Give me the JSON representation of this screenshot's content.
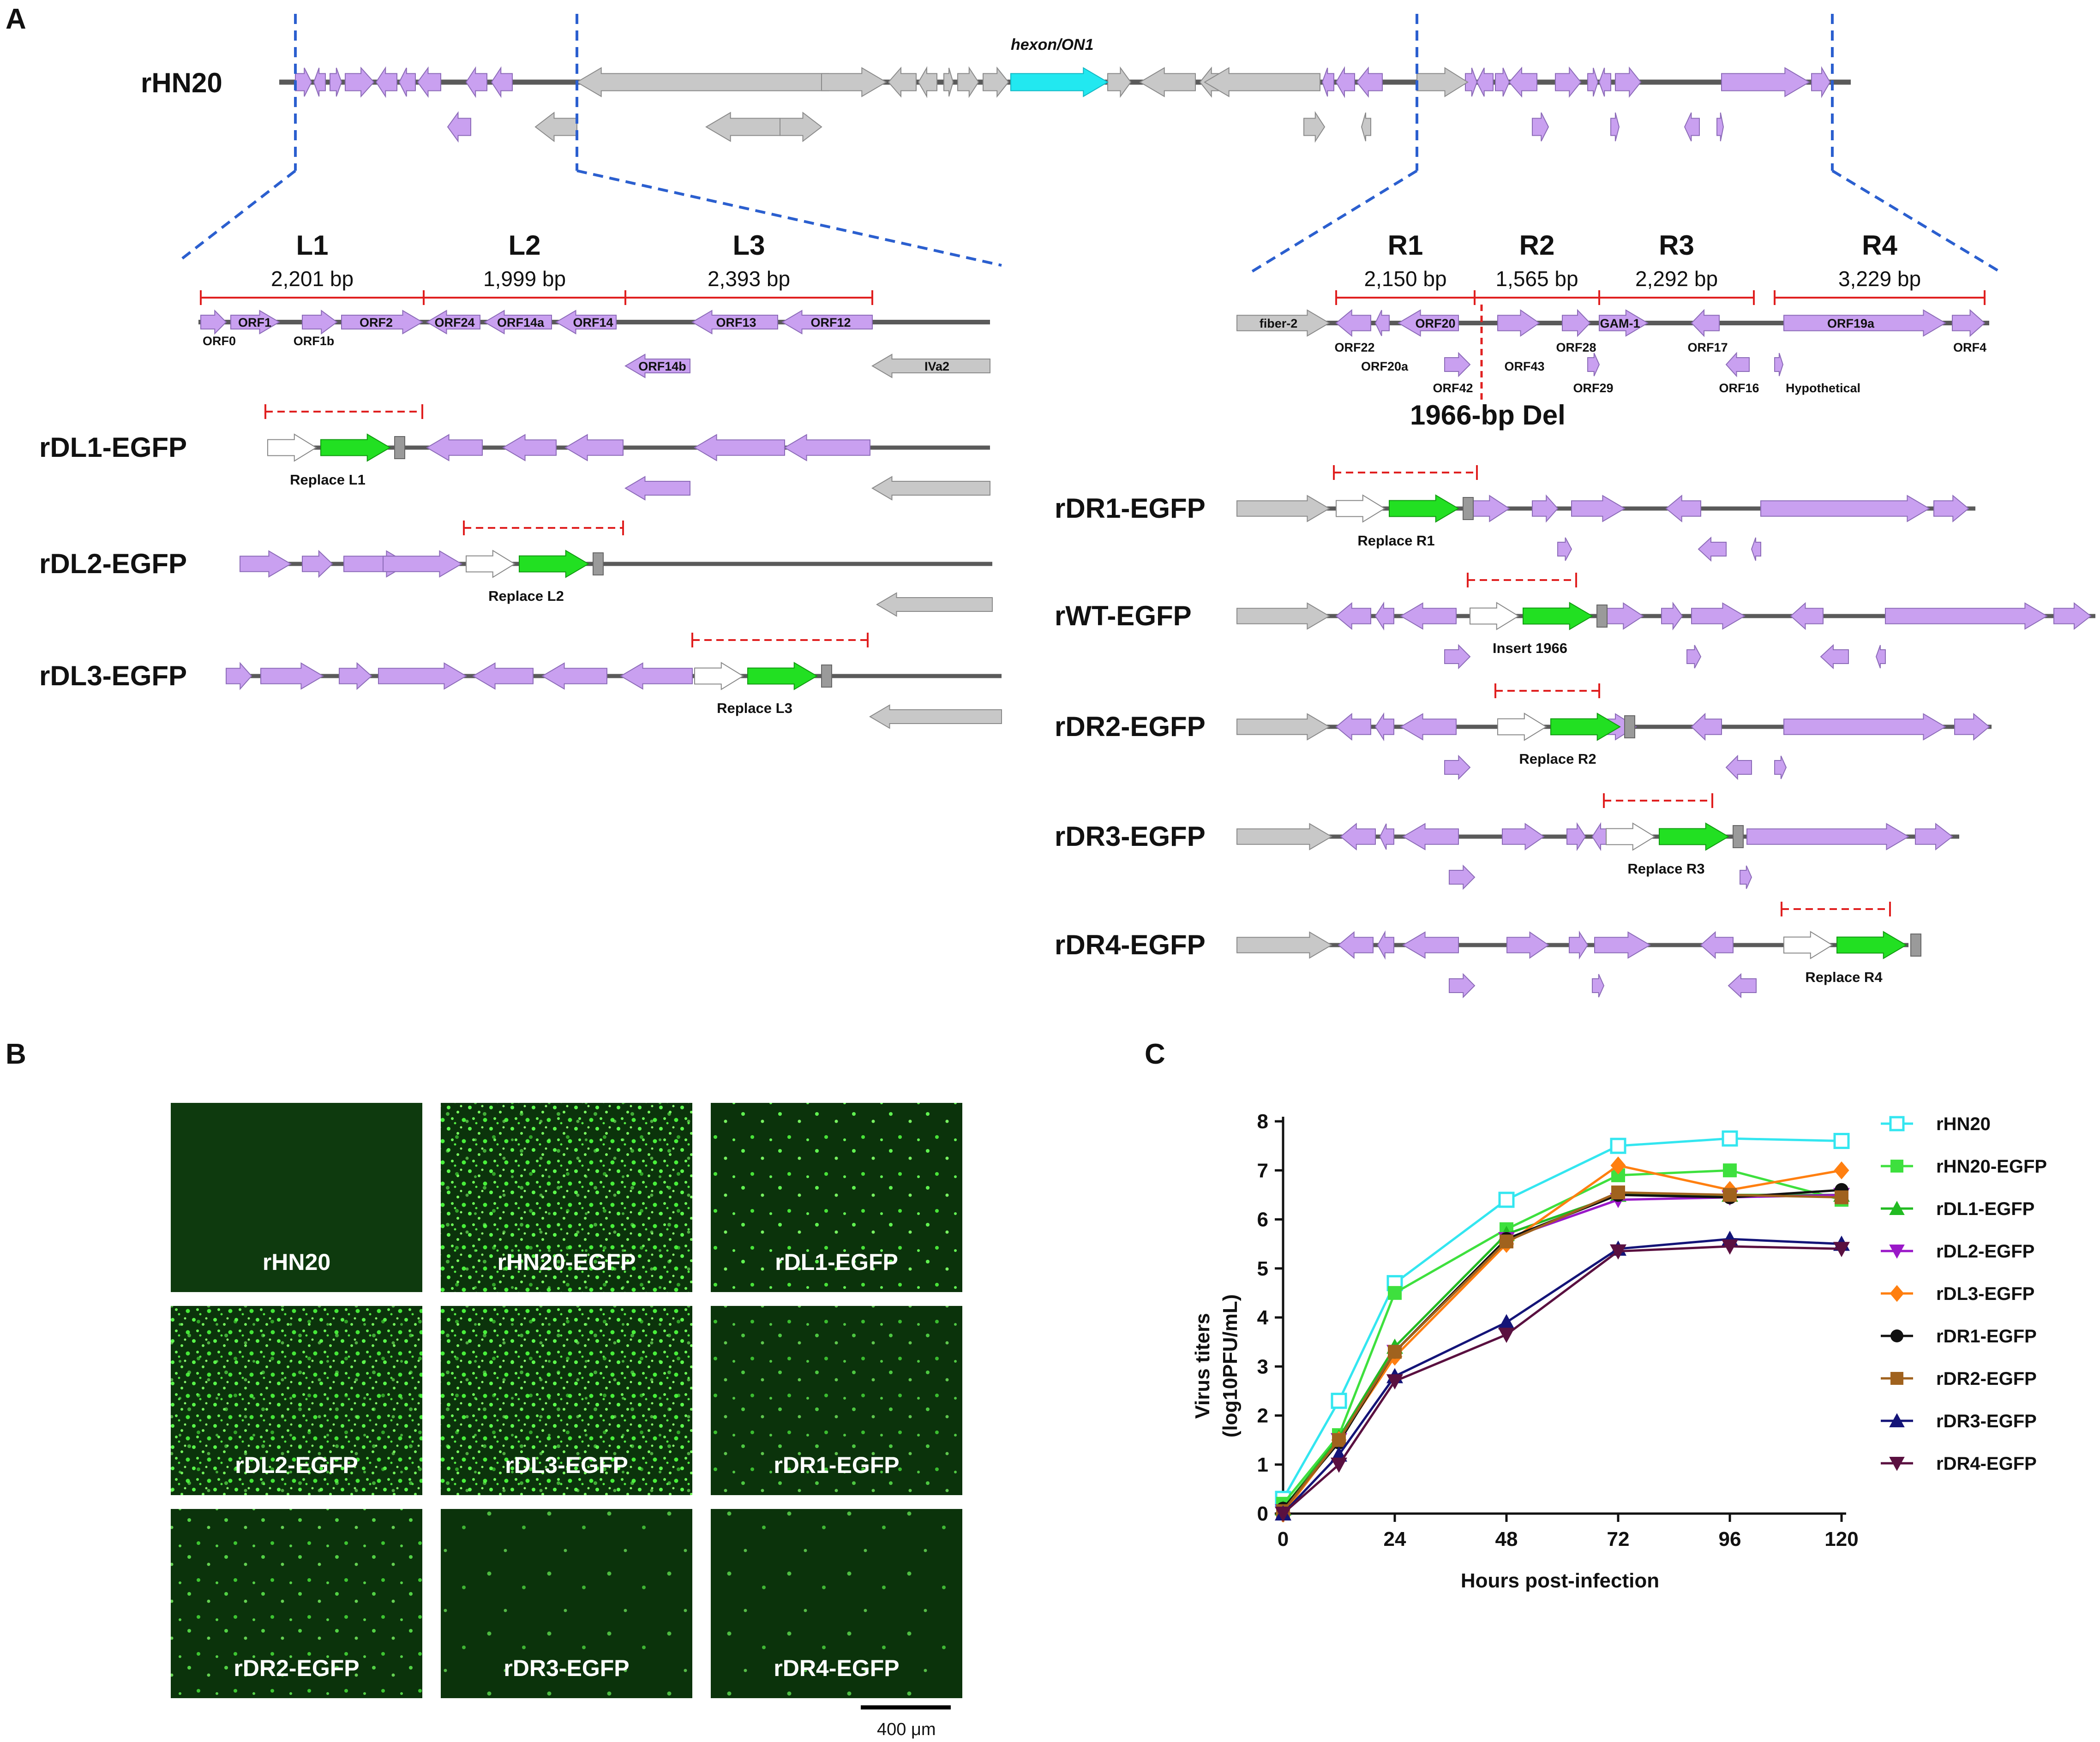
{
  "panels": {
    "a": "A",
    "b": "B",
    "c": "C"
  },
  "colors": {
    "orf": "#c9a0f0",
    "orf_stroke": "#8c6bb8",
    "gray": "#c8c8c8",
    "gray_stroke": "#8a8a8a",
    "egfp": "#22e022",
    "hexon": "#22e8f0",
    "backbone": "#5a5a5a",
    "red": "#e02020",
    "blue_dash": "#2b5fcf"
  },
  "genome": {
    "name": "rHN20",
    "hexon_label": "hexon/ON1"
  },
  "left_regions": [
    {
      "name": "L1",
      "bp": "2,201 bp"
    },
    {
      "name": "L2",
      "bp": "1,999 bp"
    },
    {
      "name": "L3",
      "bp": "2,393 bp"
    }
  ],
  "right_regions": [
    {
      "name": "R1",
      "bp": "2,150 bp"
    },
    {
      "name": "R2",
      "bp": "1,565 bp"
    },
    {
      "name": "R3",
      "bp": "2,292 bp"
    },
    {
      "name": "R4",
      "bp": "3,229 bp"
    }
  ],
  "left_genes": {
    "in_arrow": [
      "ORF1",
      "ORF2",
      "ORF24",
      "ORF14a",
      "ORF14",
      "ORF13",
      "ORF12",
      "ORF14b",
      "IVa2"
    ],
    "below": [
      "ORF0",
      "ORF1b"
    ]
  },
  "right_genes": {
    "in_arrow": [
      "fiber-2",
      "ORF20",
      "GAM-1",
      "ORF19a"
    ],
    "below": [
      "ORF22",
      "ORF20a",
      "ORF42",
      "ORF43",
      "ORF28",
      "ORF29",
      "ORF17",
      "ORF16",
      "Hypothetical",
      "ORF4"
    ]
  },
  "deletion_label": "1966-bp Del",
  "left_constructs": [
    {
      "name": "rDL1-EGFP",
      "label": "Replace L1"
    },
    {
      "name": "rDL2-EGFP",
      "label": "Replace L2"
    },
    {
      "name": "rDL3-EGFP",
      "label": "Replace L3"
    }
  ],
  "right_constructs": [
    {
      "name": "rDR1-EGFP",
      "label": "Replace R1"
    },
    {
      "name": "rWT-EGFP",
      "label": "Insert 1966"
    },
    {
      "name": "rDR2-EGFP",
      "label": "Replace R2"
    },
    {
      "name": "rDR3-EGFP",
      "label": "Replace R3"
    },
    {
      "name": "rDR4-EGFP",
      "label": "Replace R4"
    }
  ],
  "micrographs": [
    {
      "label": "rHN20",
      "density": 0
    },
    {
      "label": "rHN20-EGFP",
      "density": 1.0
    },
    {
      "label": "rDL1-EGFP",
      "density": 0.55
    },
    {
      "label": "rDL2-EGFP",
      "density": 0.8
    },
    {
      "label": "rDL3-EGFP",
      "density": 0.9
    },
    {
      "label": "rDR1-EGFP",
      "density": 0.35
    },
    {
      "label": "rDR2-EGFP",
      "density": 0.45
    },
    {
      "label": "rDR3-EGFP",
      "density": 0.22
    },
    {
      "label": "rDR4-EGFP",
      "density": 0.25
    }
  ],
  "scale_bar": "400 μm",
  "chart_data": {
    "type": "line",
    "xlabel": "Hours post-infection",
    "ylabel": "Virus titers",
    "ylabel_line2": "(log10PFU/mL)",
    "x": [
      0,
      12,
      24,
      48,
      72,
      96,
      120
    ],
    "xticks": [
      0,
      24,
      48,
      72,
      96,
      120
    ],
    "yticks": [
      0,
      1,
      2,
      3,
      4,
      5,
      6,
      7,
      8
    ],
    "xlim": [
      0,
      120
    ],
    "ylim": [
      0,
      8
    ],
    "legend_position": "right",
    "series": [
      {
        "name": "rHN20",
        "color": "#33e6f0",
        "marker": "open-square",
        "values": [
          0.3,
          2.3,
          4.7,
          6.4,
          7.5,
          7.65,
          7.6
        ]
      },
      {
        "name": "rHN20-EGFP",
        "color": "#3ee03e",
        "marker": "square",
        "values": [
          0.2,
          1.6,
          4.5,
          5.8,
          6.9,
          7.0,
          6.4
        ]
      },
      {
        "name": "rDL1-EGFP",
        "color": "#22bb22",
        "marker": "triangle",
        "values": [
          0.1,
          1.55,
          3.4,
          5.7,
          6.5,
          6.5,
          6.5
        ]
      },
      {
        "name": "rDL2-EGFP",
        "color": "#9a18c8",
        "marker": "triangle-down",
        "values": [
          0.05,
          1.5,
          3.3,
          5.6,
          6.4,
          6.45,
          6.5
        ]
      },
      {
        "name": "rDL3-EGFP",
        "color": "#ff7f10",
        "marker": "diamond",
        "values": [
          0.0,
          1.5,
          3.2,
          5.5,
          7.1,
          6.6,
          7.0
        ]
      },
      {
        "name": "rDR1-EGFP",
        "color": "#111111",
        "marker": "circle",
        "values": [
          0.1,
          1.45,
          3.3,
          5.6,
          6.5,
          6.45,
          6.6
        ]
      },
      {
        "name": "rDR2-EGFP",
        "color": "#a0621e",
        "marker": "square",
        "values": [
          0.05,
          1.5,
          3.3,
          5.55,
          6.55,
          6.5,
          6.45
        ]
      },
      {
        "name": "rDR3-EGFP",
        "color": "#141478",
        "marker": "triangle",
        "values": [
          0.0,
          1.2,
          2.8,
          3.9,
          5.4,
          5.6,
          5.5
        ]
      },
      {
        "name": "rDR4-EGFP",
        "color": "#5a1040",
        "marker": "triangle-down",
        "values": [
          0.0,
          1.0,
          2.7,
          3.65,
          5.35,
          5.45,
          5.4
        ]
      }
    ]
  }
}
